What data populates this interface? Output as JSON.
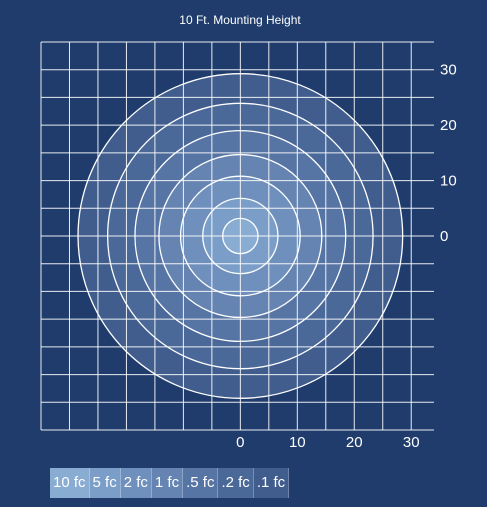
{
  "chart_data": {
    "type": "isoline",
    "title": "10 Ft. Mounting Height",
    "x_ticks": [
      "0",
      "10",
      "20",
      "30"
    ],
    "y_ticks": [
      "30",
      "20",
      "10",
      "0"
    ],
    "x_tick_values": [
      0,
      10,
      20,
      30
    ],
    "y_tick_values": [
      30,
      20,
      10,
      0
    ],
    "xlim": [
      -35,
      34
    ],
    "ylim": [
      -35,
      35
    ],
    "grid": true,
    "contours": [
      {
        "label": ".1 fc",
        "radius": 28.5,
        "color": "#405d8d"
      },
      {
        "label": ".2 fc",
        "radius": 23.3,
        "color": "#4a6898"
      },
      {
        "label": ".5 fc",
        "radius": 18.5,
        "color": "#5775a4"
      },
      {
        "label": "1 fc",
        "radius": 14.3,
        "color": "#6584b1"
      },
      {
        "label": "2 fc",
        "radius": 10.5,
        "color": "#6f90bd"
      },
      {
        "label": "5 fc",
        "radius": 6.6,
        "color": "#7b9ec8"
      },
      {
        "label": "10 fc",
        "radius": 3.1,
        "color": "#88acd2"
      }
    ],
    "legend": {
      "placement": "bottom-left",
      "items": [
        {
          "label": "10 fc",
          "color": "#88acd2"
        },
        {
          "label": "5 fc",
          "color": "#7b9ec8"
        },
        {
          "label": "2 fc",
          "color": "#6f90bd"
        },
        {
          "label": "1 fc",
          "color": "#6584b1"
        },
        {
          "label": ".5 fc",
          "color": "#5775a4"
        },
        {
          "label": ".2 fc",
          "color": "#4a6898"
        },
        {
          "label": ".1 fc",
          "color": "#405d8d"
        }
      ]
    }
  },
  "colors": {
    "background": "#1f3c6c",
    "grid": "#ffffff",
    "isoline": "#ffffff"
  }
}
